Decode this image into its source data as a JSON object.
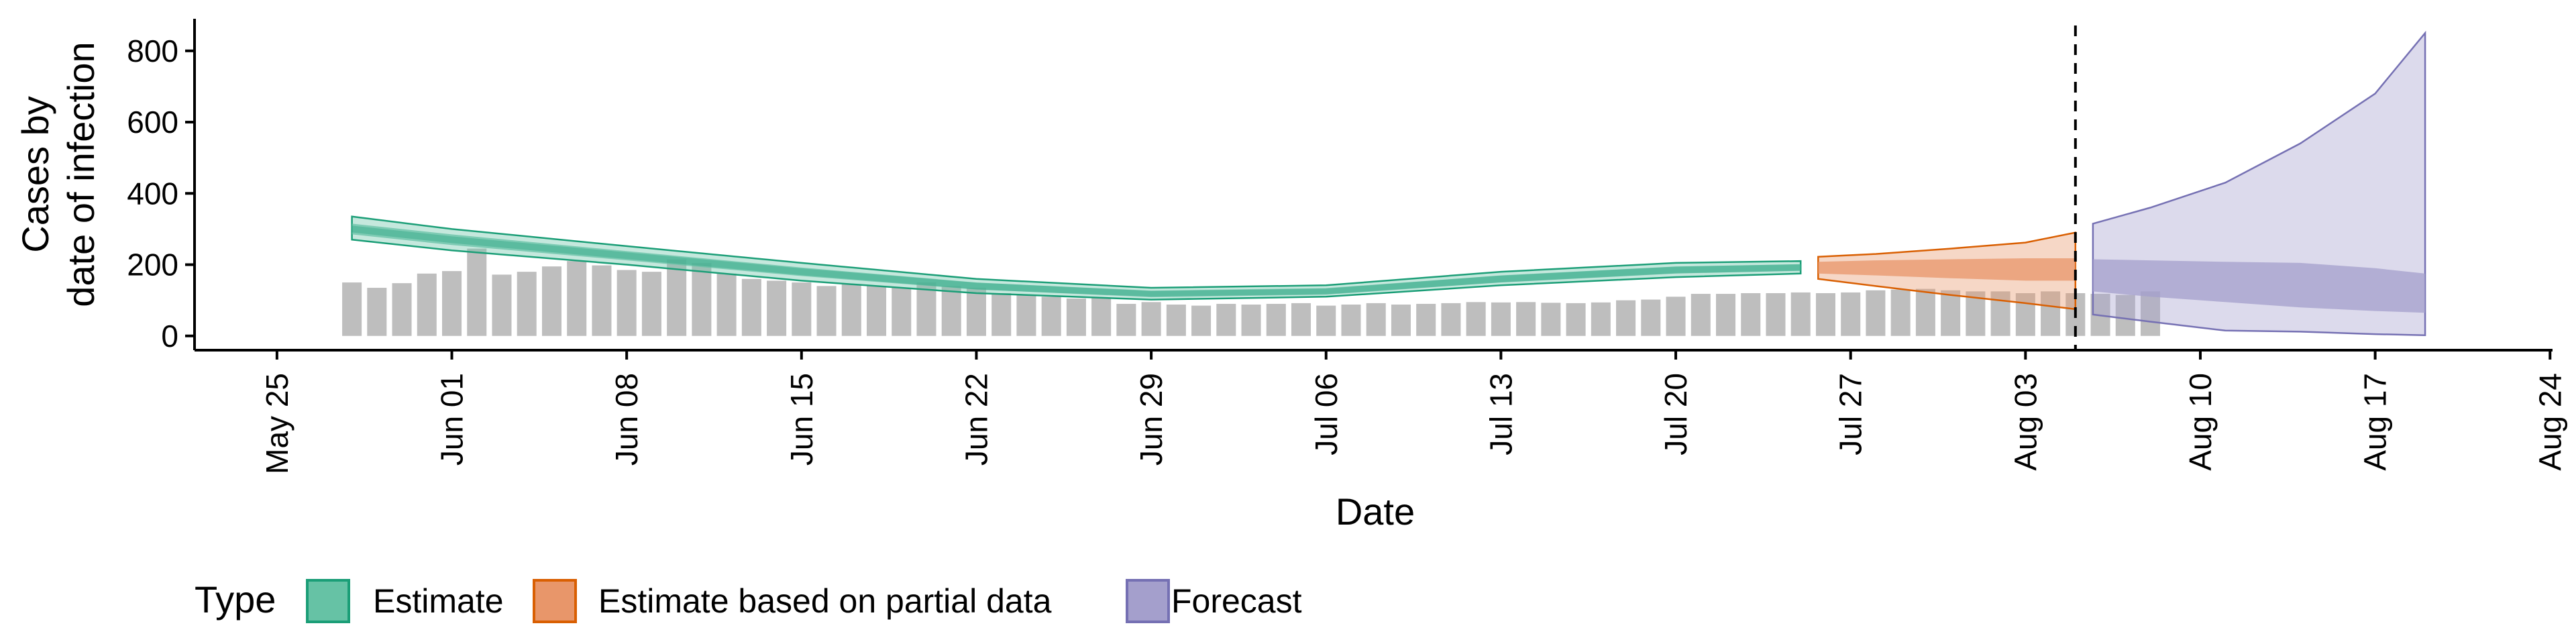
{
  "chart_data": {
    "type": "area",
    "xlabel": "Date",
    "ylabel_lines": [
      "Cases by",
      "date of infection"
    ],
    "ylim": [
      -40,
      890
    ],
    "yticks": [
      0,
      200,
      400,
      600,
      800
    ],
    "x_date_start": "2020-05-25",
    "xlim_days": [
      -3.3,
      91.1
    ],
    "xticks": [
      {
        "day": 0,
        "label": "May 25"
      },
      {
        "day": 7,
        "label": "Jun 01"
      },
      {
        "day": 14,
        "label": "Jun 08"
      },
      {
        "day": 21,
        "label": "Jun 15"
      },
      {
        "day": 28,
        "label": "Jun 22"
      },
      {
        "day": 35,
        "label": "Jun 29"
      },
      {
        "day": 42,
        "label": "Jul 06"
      },
      {
        "day": 49,
        "label": "Jul 13"
      },
      {
        "day": 56,
        "label": "Jul 20"
      },
      {
        "day": 63,
        "label": "Jul 27"
      },
      {
        "day": 70,
        "label": "Aug 03"
      },
      {
        "day": 77,
        "label": "Aug 10"
      },
      {
        "day": 84,
        "label": "Aug 17"
      },
      {
        "day": 91,
        "label": "Aug 24"
      }
    ],
    "reported_cases": {
      "start_day": 3,
      "color": "#bebebe",
      "values": [
        150,
        135,
        148,
        175,
        182,
        245,
        172,
        180,
        195,
        210,
        198,
        185,
        180,
        215,
        205,
        175,
        160,
        155,
        150,
        140,
        145,
        140,
        135,
        150,
        140,
        135,
        120,
        115,
        110,
        105,
        108,
        90,
        95,
        88,
        85,
        90,
        88,
        90,
        92,
        85,
        88,
        92,
        88,
        90,
        92,
        95,
        94,
        95,
        93,
        92,
        94,
        100,
        102,
        110,
        118,
        118,
        120,
        120,
        122,
        120,
        122,
        128,
        130,
        132,
        128,
        125,
        125,
        120,
        125,
        120,
        118,
        115,
        125
      ]
    },
    "forecast_start_day": 72,
    "series": [
      {
        "name": "Estimate",
        "color": "#1b9e77",
        "fill": "#66c2a5",
        "x": [
          3,
          7,
          14,
          21,
          28,
          35,
          42,
          49,
          56,
          61
        ],
        "median": [
          300,
          270,
          225,
          180,
          140,
          118,
          125,
          160,
          185,
          192
        ],
        "inner_low": [
          285,
          255,
          212,
          168,
          130,
          110,
          117,
          150,
          175,
          183
        ],
        "inner_high": [
          315,
          285,
          238,
          192,
          150,
          126,
          133,
          170,
          195,
          201
        ],
        "outer_low": [
          270,
          240,
          200,
          155,
          120,
          102,
          110,
          142,
          165,
          175
        ],
        "outer_high": [
          335,
          300,
          252,
          205,
          160,
          135,
          142,
          180,
          205,
          210
        ]
      },
      {
        "name": "Estimate based on partial data",
        "color": "#d95f02",
        "fill": "#e8966a",
        "x": [
          61.7,
          64,
          67,
          70,
          72
        ],
        "inner_low": [
          175,
          170,
          162,
          155,
          155
        ],
        "inner_high": [
          208,
          212,
          215,
          218,
          218
        ],
        "outer_low": [
          160,
          140,
          115,
          92,
          75
        ],
        "outer_high": [
          222,
          230,
          245,
          262,
          290
        ]
      },
      {
        "name": "Forecast",
        "color": "#7570b3",
        "fill": "#a49fcc",
        "x": [
          72.7,
          75,
          78,
          81,
          84,
          86
        ],
        "inner_low": [
          125,
          110,
          95,
          80,
          70,
          65
        ],
        "inner_high": [
          215,
          212,
          208,
          205,
          190,
          175
        ],
        "outer_low": [
          60,
          40,
          15,
          12,
          5,
          2
        ],
        "outer_high": [
          315,
          360,
          430,
          540,
          680,
          850
        ]
      }
    ],
    "legend_title": "Type",
    "legend_position": "bottom-left",
    "legend_entries": [
      {
        "label": "Estimate",
        "fill": "#66c2a5",
        "stroke": "#1b9e77"
      },
      {
        "label": "Estimate based on partial data",
        "fill": "#e8966a",
        "stroke": "#d95f02"
      },
      {
        "label": "Forecast",
        "fill": "#a49fcc",
        "stroke": "#7570b3"
      }
    ]
  }
}
